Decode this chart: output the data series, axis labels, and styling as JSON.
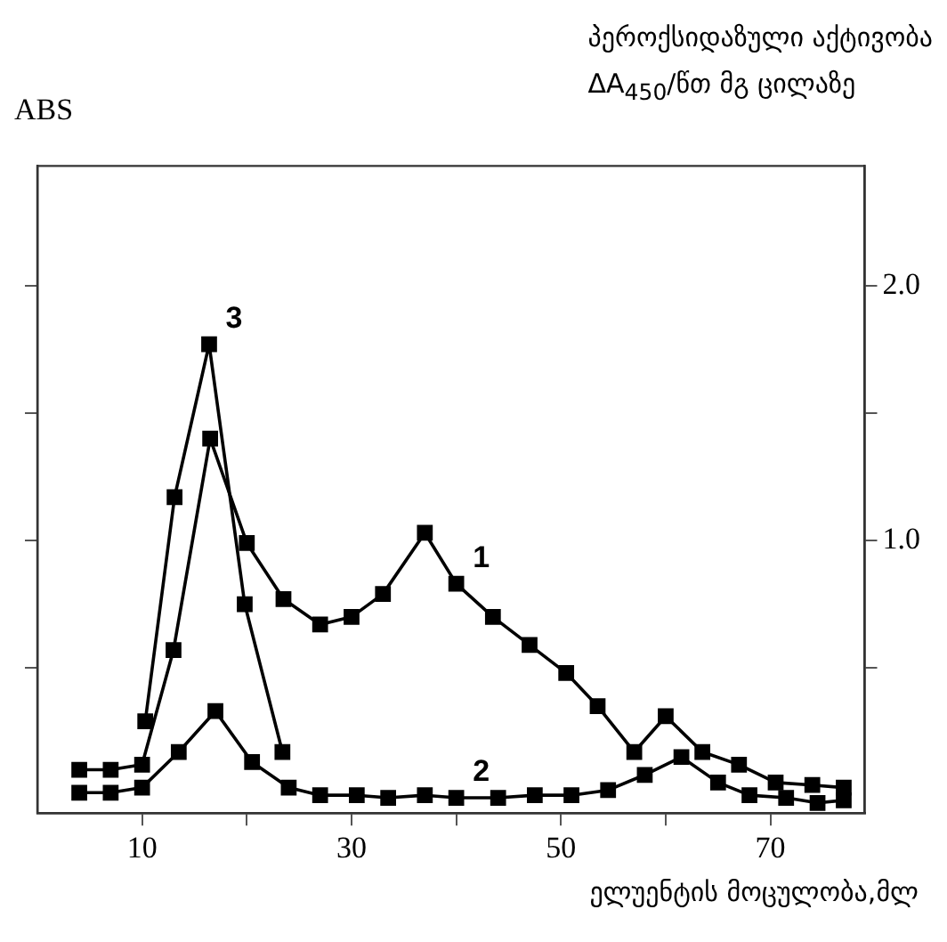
{
  "chart_data": {
    "type": "line",
    "xlabel": "ელუენტის მოცულობა,მლ",
    "ylabel": "ABS",
    "y2label": "პეროქსიდაზული აქტივობა\nΔA$_{450}$/წთ მგ ცილაზე",
    "xlim": [
      0,
      79
    ],
    "xticks": [
      10,
      {
        "value": 20,
        "label": null
      },
      30,
      {
        "value": 40,
        "label": null
      },
      50,
      {
        "value": 60,
        "label": null
      },
      70
    ],
    "ylim": [
      -0.07,
      2.47
    ],
    "yticks": [
      {
        "value": 0.5,
        "label": null
      },
      {
        "value": 1.0,
        "label": "1.0"
      },
      {
        "value": 1.5,
        "label": null
      },
      {
        "value": 2.0,
        "label": "2.0"
      }
    ],
    "grid": false,
    "legend": false,
    "marker": "square",
    "line_style": "solid",
    "series": [
      {
        "name": "1",
        "color": "#000000",
        "x": [
          4,
          7,
          10,
          13,
          16.5,
          20,
          23.5,
          27,
          30,
          33,
          37,
          40,
          43.5,
          47,
          50.5,
          53.5,
          57,
          60,
          63.5,
          67,
          70.5,
          74,
          77
        ],
        "values": [
          0.1,
          0.1,
          0.12,
          0.57,
          1.4,
          0.99,
          0.77,
          0.67,
          0.7,
          0.79,
          1.03,
          0.83,
          0.7,
          0.59,
          0.48,
          0.35,
          0.17,
          0.31,
          0.17,
          0.12,
          0.05,
          0.04,
          0.03
        ]
      },
      {
        "name": "2",
        "color": "#000000",
        "x": [
          4,
          7,
          10,
          13.5,
          17,
          20.5,
          24,
          27,
          30.5,
          33.5,
          37,
          40,
          44,
          47.5,
          51,
          54.5,
          58,
          61.5,
          65,
          68,
          71.5,
          74.5,
          77
        ],
        "values": [
          0.01,
          0.01,
          0.03,
          0.17,
          0.33,
          0.13,
          0.03,
          0,
          0,
          -0.01,
          0,
          -0.01,
          -0.01,
          0,
          0,
          0.02,
          0.08,
          0.15,
          0.05,
          0,
          -0.01,
          -0.03,
          -0.02
        ]
      },
      {
        "name": "3",
        "color": "#000000",
        "x": [
          10.3,
          13.1,
          16.4,
          19.8,
          23.4
        ],
        "values": [
          0.29,
          1.17,
          1.77,
          0.75,
          0.17
        ]
      }
    ]
  }
}
